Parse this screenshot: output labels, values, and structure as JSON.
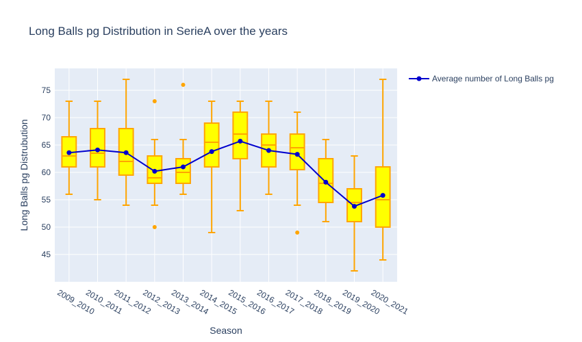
{
  "chart_data": {
    "type": "box",
    "title": "Long Balls pg Distribution in SerieA over the years",
    "xlabel": "Season",
    "ylabel": "Long Balls pg Distrubution",
    "ylim": [
      40,
      79
    ],
    "yticks": [
      45,
      50,
      55,
      60,
      65,
      70,
      75
    ],
    "grid": true,
    "legend_position": "top-right",
    "categories": [
      "2009_2010",
      "2010_2011",
      "2011_2012",
      "2012_2013",
      "2013_2014",
      "2014_2015",
      "2015_2016",
      "2016_2017",
      "2017_2018",
      "2018_2019",
      "2019_2020",
      "2020_2021"
    ],
    "boxes": [
      {
        "min": 56,
        "q1": 61,
        "median": 63,
        "q3": 66.5,
        "max": 73,
        "outliers": []
      },
      {
        "min": 55,
        "q1": 61,
        "median": 63.5,
        "q3": 68,
        "max": 73,
        "outliers": []
      },
      {
        "min": 54,
        "q1": 59.5,
        "median": 62,
        "q3": 68,
        "max": 77,
        "outliers": []
      },
      {
        "min": 54,
        "q1": 58,
        "median": 59,
        "q3": 63,
        "max": 66,
        "outliers": [
          73,
          50
        ]
      },
      {
        "min": 56,
        "q1": 58,
        "median": 60,
        "q3": 62.5,
        "max": 66,
        "outliers": [
          76
        ]
      },
      {
        "min": 49,
        "q1": 61,
        "median": 65.5,
        "q3": 69,
        "max": 73,
        "outliers": []
      },
      {
        "min": 53,
        "q1": 62.5,
        "median": 67,
        "q3": 71,
        "max": 73,
        "outliers": []
      },
      {
        "min": 56,
        "q1": 61,
        "median": 65,
        "q3": 67,
        "max": 73,
        "outliers": []
      },
      {
        "min": 54,
        "q1": 60.5,
        "median": 64.5,
        "q3": 67,
        "max": 71,
        "outliers": [
          49
        ]
      },
      {
        "min": 51,
        "q1": 54.5,
        "median": 58,
        "q3": 62.5,
        "max": 66,
        "outliers": []
      },
      {
        "min": 42,
        "q1": 51,
        "median": 54.5,
        "q3": 57,
        "max": 63,
        "outliers": []
      },
      {
        "min": 44,
        "q1": 50,
        "median": 55,
        "q3": 61,
        "max": 77,
        "outliers": []
      }
    ],
    "series": [
      {
        "name": "Average number of Long Balls pg",
        "type": "line",
        "values": [
          63.6,
          64.1,
          63.6,
          60.2,
          61.0,
          63.8,
          65.7,
          64.0,
          63.3,
          58.2,
          53.8,
          55.8
        ]
      }
    ],
    "colors": {
      "box_fill": "#ffff00",
      "box_line": "#ffa500",
      "line": "#0000cd",
      "plot_bg": "#e5ecf6",
      "grid": "#ffffff"
    }
  }
}
